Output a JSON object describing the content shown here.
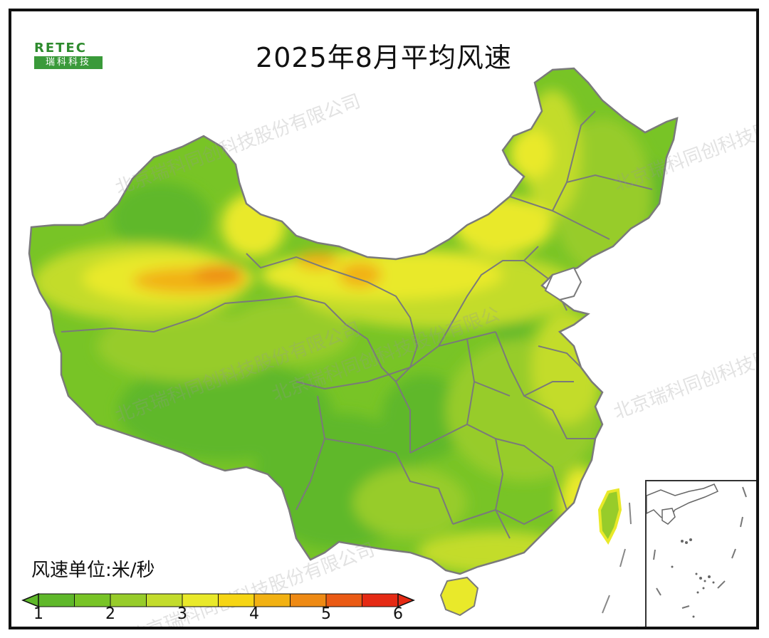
{
  "title": "2025年8月平均风速",
  "logo": {
    "top": "RETEC",
    "bottom": "瑞科科技"
  },
  "watermark": [
    "北京瑞科同创科技股份有限公司",
    "北京瑞科同创科技股份有限公司",
    "北京瑞科同创科技股份有限公司",
    "北京瑞科同创科技股份有限公",
    "北京瑞科同创科技股份有限公司",
    "北京瑞科同创科技股份有限公司",
    "北京瑞科同创科技股份有限公司"
  ],
  "legend": {
    "unit_label": "风速单位:米/秒",
    "ticks": [
      "1",
      "2",
      "3",
      "4",
      "5",
      "6"
    ],
    "bins": [
      {
        "from": 1.0,
        "to": 1.5,
        "color": "#5fb82a"
      },
      {
        "from": 1.5,
        "to": 2.0,
        "color": "#78c426"
      },
      {
        "from": 2.0,
        "to": 2.5,
        "color": "#97cc2a"
      },
      {
        "from": 2.5,
        "to": 3.0,
        "color": "#c3dc2c"
      },
      {
        "from": 3.0,
        "to": 3.5,
        "color": "#e9e92a"
      },
      {
        "from": 3.5,
        "to": 4.0,
        "color": "#f6d514"
      },
      {
        "from": 4.0,
        "to": 4.5,
        "color": "#f2b112"
      },
      {
        "from": 4.5,
        "to": 5.0,
        "color": "#ee8a14"
      },
      {
        "from": 5.0,
        "to": 5.5,
        "color": "#ea5a14"
      },
      {
        "from": 5.5,
        "to": 6.0,
        "color": "#e52a14"
      }
    ]
  },
  "map_colors": {
    "ocean": "#ffffff",
    "border": "#7a7a7a"
  }
}
